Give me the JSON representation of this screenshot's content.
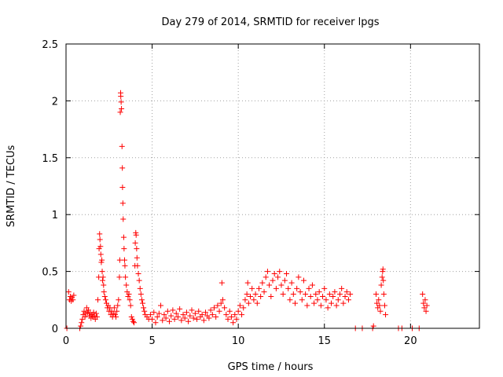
{
  "chart_data": {
    "type": "scatter",
    "title": "Day 279 of 2014, SRMTID for receiver lpgs",
    "xlabel": "GPS time / hours",
    "ylabel": "SRMTID / TECUs",
    "xlim": [
      0,
      24
    ],
    "ylim": [
      0,
      2.5
    ],
    "x_ticks": [
      0,
      5,
      10,
      15,
      20
    ],
    "y_ticks": [
      0,
      0.5,
      1,
      1.5,
      2,
      2.5
    ],
    "x_tick_labels": [
      "0",
      "5",
      "10",
      "15",
      "20"
    ],
    "y_tick_labels": [
      "0",
      "0.5",
      "1",
      "1.5",
      "2",
      "2.5"
    ],
    "grid": true,
    "marker": "plus",
    "marker_color": "#ff0000",
    "series": [
      {
        "name": "SRMTID",
        "points": [
          [
            0.05,
            0.0
          ],
          [
            0.15,
            0.32
          ],
          [
            0.2,
            0.25
          ],
          [
            0.25,
            0.28
          ],
          [
            0.3,
            0.24
          ],
          [
            0.35,
            0.27
          ],
          [
            0.4,
            0.25
          ],
          [
            0.45,
            0.29
          ],
          [
            0.8,
            0.0
          ],
          [
            0.85,
            0.02
          ],
          [
            0.9,
            0.05
          ],
          [
            0.95,
            0.08
          ],
          [
            1.0,
            0.12
          ],
          [
            1.05,
            0.15
          ],
          [
            1.1,
            0.1
          ],
          [
            1.15,
            0.13
          ],
          [
            1.2,
            0.18
          ],
          [
            1.25,
            0.14
          ],
          [
            1.3,
            0.16
          ],
          [
            1.35,
            0.11
          ],
          [
            1.4,
            0.13
          ],
          [
            1.45,
            0.09
          ],
          [
            1.5,
            0.12
          ],
          [
            1.55,
            0.1
          ],
          [
            1.6,
            0.14
          ],
          [
            1.65,
            0.11
          ],
          [
            1.7,
            0.08
          ],
          [
            1.75,
            0.13
          ],
          [
            1.8,
            0.1
          ],
          [
            1.85,
            0.25
          ],
          [
            1.9,
            0.45
          ],
          [
            1.92,
            0.7
          ],
          [
            1.95,
            0.83
          ],
          [
            1.97,
            0.78
          ],
          [
            2.0,
            0.72
          ],
          [
            2.02,
            0.65
          ],
          [
            2.05,
            0.58
          ],
          [
            2.08,
            0.6
          ],
          [
            2.1,
            0.5
          ],
          [
            2.12,
            0.42
          ],
          [
            2.15,
            0.45
          ],
          [
            2.18,
            0.38
          ],
          [
            2.2,
            0.32
          ],
          [
            2.25,
            0.28
          ],
          [
            2.3,
            0.25
          ],
          [
            2.35,
            0.22
          ],
          [
            2.4,
            0.18
          ],
          [
            2.45,
            0.2
          ],
          [
            2.5,
            0.15
          ],
          [
            2.55,
            0.18
          ],
          [
            2.6,
            0.12
          ],
          [
            2.65,
            0.15
          ],
          [
            2.7,
            0.1
          ],
          [
            2.75,
            0.13
          ],
          [
            2.8,
            0.18
          ],
          [
            2.85,
            0.12
          ],
          [
            2.9,
            0.1
          ],
          [
            2.95,
            0.15
          ],
          [
            3.0,
            0.2
          ],
          [
            3.05,
            0.25
          ],
          [
            3.1,
            0.45
          ],
          [
            3.12,
            0.6
          ],
          [
            3.15,
            1.9
          ],
          [
            3.17,
            2.07
          ],
          [
            3.18,
            2.04
          ],
          [
            3.2,
            1.99
          ],
          [
            3.22,
            1.93
          ],
          [
            3.25,
            1.6
          ],
          [
            3.27,
            1.41
          ],
          [
            3.28,
            1.24
          ],
          [
            3.3,
            1.1
          ],
          [
            3.32,
            0.96
          ],
          [
            3.35,
            0.8
          ],
          [
            3.37,
            0.7
          ],
          [
            3.4,
            0.6
          ],
          [
            3.42,
            0.55
          ],
          [
            3.45,
            0.45
          ],
          [
            3.5,
            0.38
          ],
          [
            3.55,
            0.32
          ],
          [
            3.6,
            0.28
          ],
          [
            3.65,
            0.3
          ],
          [
            3.7,
            0.25
          ],
          [
            3.75,
            0.2
          ],
          [
            3.8,
            0.1
          ],
          [
            3.85,
            0.08
          ],
          [
            3.9,
            0.06
          ],
          [
            3.95,
            0.05
          ],
          [
            4.0,
            0.55
          ],
          [
            4.02,
            0.75
          ],
          [
            4.05,
            0.84
          ],
          [
            4.07,
            0.82
          ],
          [
            4.1,
            0.7
          ],
          [
            4.12,
            0.62
          ],
          [
            4.15,
            0.55
          ],
          [
            4.2,
            0.48
          ],
          [
            4.25,
            0.42
          ],
          [
            4.3,
            0.35
          ],
          [
            4.35,
            0.3
          ],
          [
            4.4,
            0.25
          ],
          [
            4.45,
            0.22
          ],
          [
            4.5,
            0.18
          ],
          [
            4.55,
            0.15
          ],
          [
            4.6,
            0.12
          ],
          [
            4.7,
            0.1
          ],
          [
            4.8,
            0.08
          ],
          [
            4.9,
            0.12
          ],
          [
            5.0,
            0.08
          ],
          [
            5.1,
            0.14
          ],
          [
            5.2,
            0.05
          ],
          [
            5.3,
            0.1
          ],
          [
            5.4,
            0.13
          ],
          [
            5.5,
            0.2
          ],
          [
            5.6,
            0.07
          ],
          [
            5.7,
            0.12
          ],
          [
            5.8,
            0.09
          ],
          [
            5.9,
            0.15
          ],
          [
            6.0,
            0.06
          ],
          [
            6.1,
            0.11
          ],
          [
            6.2,
            0.16
          ],
          [
            6.3,
            0.08
          ],
          [
            6.4,
            0.13
          ],
          [
            6.5,
            0.1
          ],
          [
            6.6,
            0.17
          ],
          [
            6.7,
            0.07
          ],
          [
            6.8,
            0.12
          ],
          [
            6.9,
            0.09
          ],
          [
            7.0,
            0.14
          ],
          [
            7.1,
            0.06
          ],
          [
            7.2,
            0.11
          ],
          [
            7.3,
            0.16
          ],
          [
            7.4,
            0.09
          ],
          [
            7.5,
            0.13
          ],
          [
            7.6,
            0.08
          ],
          [
            7.7,
            0.15
          ],
          [
            7.8,
            0.1
          ],
          [
            7.9,
            0.12
          ],
          [
            8.0,
            0.07
          ],
          [
            8.1,
            0.14
          ],
          [
            8.2,
            0.11
          ],
          [
            8.3,
            0.09
          ],
          [
            8.4,
            0.16
          ],
          [
            8.5,
            0.12
          ],
          [
            8.6,
            0.18
          ],
          [
            8.7,
            0.1
          ],
          [
            8.8,
            0.2
          ],
          [
            8.9,
            0.15
          ],
          [
            9.0,
            0.22
          ],
          [
            9.05,
            0.4
          ],
          [
            9.1,
            0.25
          ],
          [
            9.2,
            0.18
          ],
          [
            9.3,
            0.12
          ],
          [
            9.4,
            0.08
          ],
          [
            9.5,
            0.15
          ],
          [
            9.6,
            0.1
          ],
          [
            9.7,
            0.05
          ],
          [
            9.8,
            0.12
          ],
          [
            9.9,
            0.08
          ],
          [
            10.0,
            0.15
          ],
          [
            10.1,
            0.2
          ],
          [
            10.2,
            0.12
          ],
          [
            10.3,
            0.18
          ],
          [
            10.4,
            0.25
          ],
          [
            10.5,
            0.3
          ],
          [
            10.55,
            0.4
          ],
          [
            10.6,
            0.22
          ],
          [
            10.7,
            0.28
          ],
          [
            10.8,
            0.35
          ],
          [
            10.9,
            0.25
          ],
          [
            11.0,
            0.3
          ],
          [
            11.1,
            0.22
          ],
          [
            11.2,
            0.35
          ],
          [
            11.3,
            0.28
          ],
          [
            11.4,
            0.4
          ],
          [
            11.5,
            0.32
          ],
          [
            11.6,
            0.45
          ],
          [
            11.7,
            0.5
          ],
          [
            11.8,
            0.38
          ],
          [
            11.9,
            0.28
          ],
          [
            12.0,
            0.42
          ],
          [
            12.1,
            0.48
          ],
          [
            12.2,
            0.35
          ],
          [
            12.3,
            0.45
          ],
          [
            12.4,
            0.5
          ],
          [
            12.5,
            0.38
          ],
          [
            12.6,
            0.3
          ],
          [
            12.7,
            0.42
          ],
          [
            12.8,
            0.48
          ],
          [
            12.9,
            0.35
          ],
          [
            13.0,
            0.25
          ],
          [
            13.1,
            0.4
          ],
          [
            13.2,
            0.3
          ],
          [
            13.3,
            0.22
          ],
          [
            13.4,
            0.35
          ],
          [
            13.5,
            0.45
          ],
          [
            13.6,
            0.32
          ],
          [
            13.7,
            0.25
          ],
          [
            13.8,
            0.42
          ],
          [
            13.9,
            0.3
          ],
          [
            14.0,
            0.2
          ],
          [
            14.1,
            0.35
          ],
          [
            14.2,
            0.28
          ],
          [
            14.3,
            0.38
          ],
          [
            14.4,
            0.22
          ],
          [
            14.5,
            0.3
          ],
          [
            14.6,
            0.25
          ],
          [
            14.7,
            0.32
          ],
          [
            14.8,
            0.2
          ],
          [
            14.9,
            0.28
          ],
          [
            15.0,
            0.35
          ],
          [
            15.1,
            0.25
          ],
          [
            15.2,
            0.18
          ],
          [
            15.3,
            0.3
          ],
          [
            15.4,
            0.22
          ],
          [
            15.5,
            0.28
          ],
          [
            15.6,
            0.32
          ],
          [
            15.7,
            0.2
          ],
          [
            15.8,
            0.25
          ],
          [
            15.9,
            0.3
          ],
          [
            16.0,
            0.35
          ],
          [
            16.1,
            0.22
          ],
          [
            16.2,
            0.28
          ],
          [
            16.3,
            0.32
          ],
          [
            16.4,
            0.25
          ],
          [
            16.5,
            0.3
          ],
          [
            16.8,
            0.0
          ],
          [
            17.2,
            0.0
          ],
          [
            17.8,
            0.0
          ],
          [
            17.85,
            0.02
          ],
          [
            18.0,
            0.3
          ],
          [
            18.05,
            0.22
          ],
          [
            18.1,
            0.18
          ],
          [
            18.15,
            0.25
          ],
          [
            18.2,
            0.2
          ],
          [
            18.25,
            0.15
          ],
          [
            18.3,
            0.38
          ],
          [
            18.35,
            0.45
          ],
          [
            18.38,
            0.5
          ],
          [
            18.4,
            0.52
          ],
          [
            18.42,
            0.42
          ],
          [
            18.45,
            0.3
          ],
          [
            18.5,
            0.2
          ],
          [
            18.55,
            0.12
          ],
          [
            19.3,
            0.0
          ],
          [
            19.5,
            0.0
          ],
          [
            20.1,
            0.0
          ],
          [
            20.5,
            0.0
          ],
          [
            20.7,
            0.3
          ],
          [
            20.75,
            0.22
          ],
          [
            20.8,
            0.18
          ],
          [
            20.85,
            0.25
          ],
          [
            20.9,
            0.15
          ],
          [
            20.95,
            0.2
          ]
        ]
      }
    ]
  }
}
